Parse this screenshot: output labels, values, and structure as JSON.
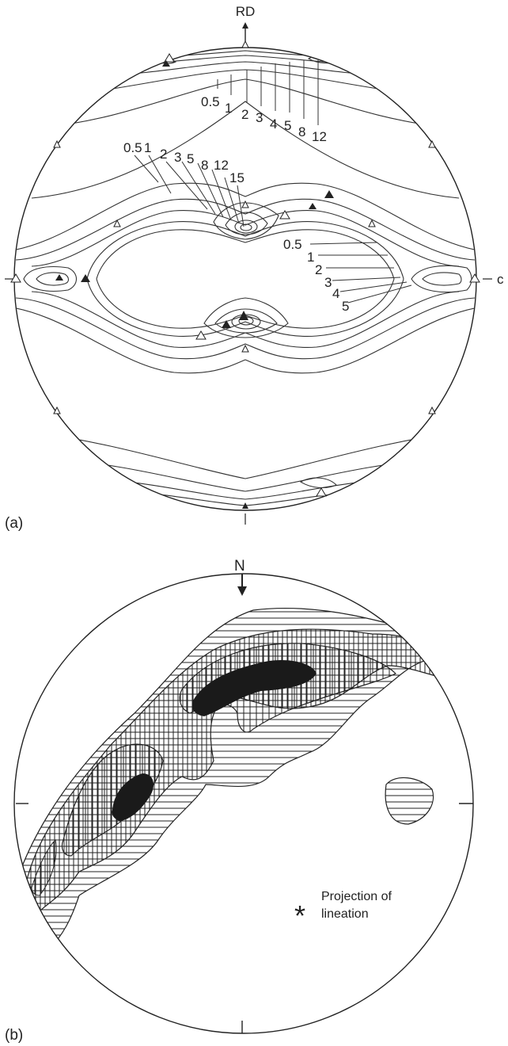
{
  "panel_a": {
    "label": "(a)",
    "axis_top": "RD",
    "axis_right": "c",
    "top_contour_labels": [
      "0.5",
      "1",
      "2",
      "3",
      "4",
      "5",
      "8",
      "12"
    ],
    "center_contour_labels": [
      "0.5",
      "1",
      "2",
      "3",
      "5",
      "8",
      "12",
      "15"
    ],
    "right_contour_labels": [
      "0.5",
      "1",
      "2",
      "3",
      "4",
      "5"
    ]
  },
  "panel_b": {
    "label": "(b)",
    "north": "N",
    "legend_symbol": "*",
    "legend_line1": "Projection of",
    "legend_line2": "lineation"
  }
}
